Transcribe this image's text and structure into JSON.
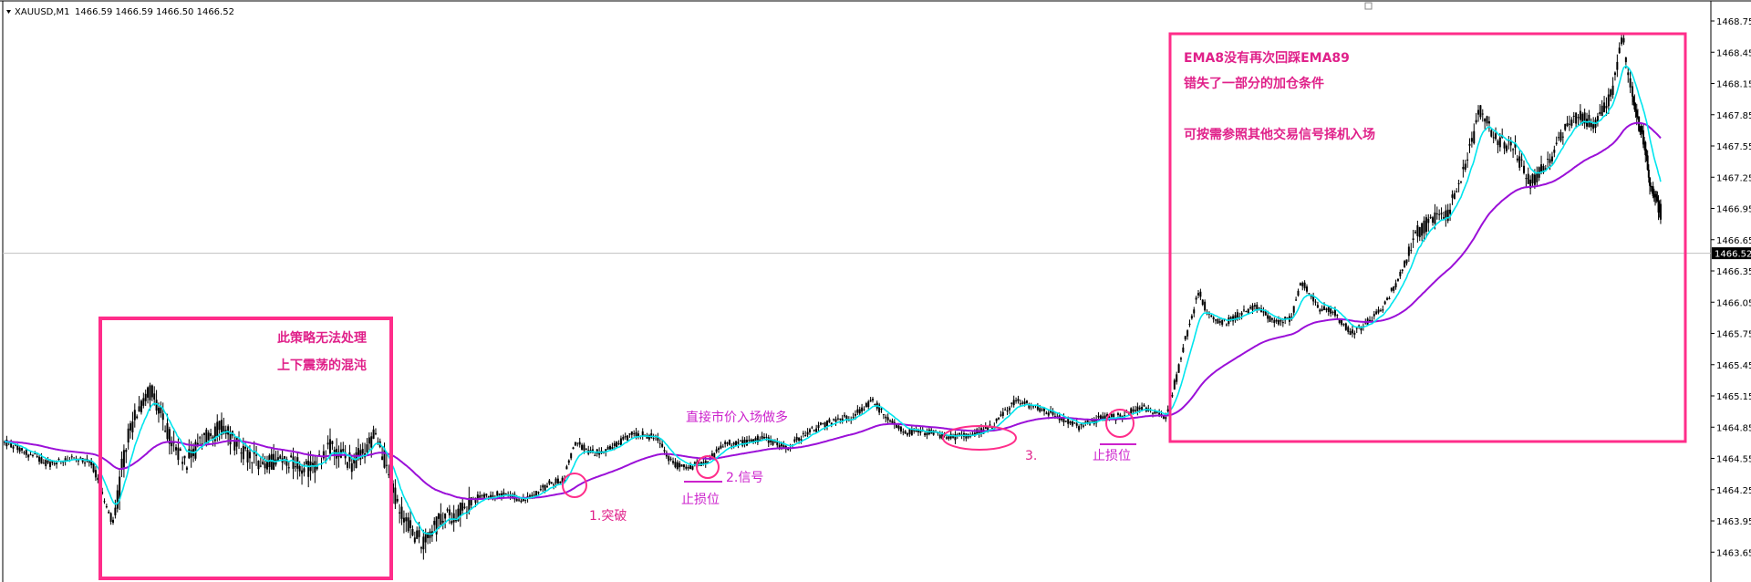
{
  "header": {
    "symbol_timeframe": "XAUUSD,M1",
    "ohlc": "1466.59 1466.59 1466.50 1466.52"
  },
  "colors": {
    "candle": "#000000",
    "ema_fast": "#00e5ee",
    "ema_slow": "#9b10d8",
    "annotation": "#ff2d8a",
    "annotation_text_pink": "#e0218a",
    "annotation_text_magenta": "#cc22cc",
    "price_line": "#c0c0c0",
    "price_label_bg": "#000000",
    "price_label_text": "#ffffff"
  },
  "current_price_label": "1466.52",
  "annotations": {
    "box1_line1": "此策略无法处理",
    "box1_line2": "上下震荡的混沌",
    "entry_text": "直接市价入场做多",
    "breakout": "1.突破",
    "signal": "2.信号",
    "stop1": "止损位",
    "three": "3.",
    "stop2": "止损位",
    "box2_line1": "EMA8没有再次回踩EMA89",
    "box2_line2": "错失了一部分的加仓条件",
    "box2_line3": "可按需参照其他交易信号择机入场"
  },
  "chart_data": {
    "type": "candlestick",
    "title": "XAUUSD,M1",
    "ylim": [
      1463.62,
      1468.82
    ],
    "y_ticks": [
      "1468.75",
      "1468.45",
      "1468.15",
      "1467.85",
      "1467.55",
      "1467.25",
      "1466.95",
      "1466.65",
      "1466.35",
      "1466.05",
      "1465.75",
      "1465.45",
      "1465.15",
      "1464.85",
      "1464.55",
      "1464.25",
      "1463.95",
      "1463.65"
    ],
    "series": [
      {
        "name": "EMA8"
      },
      {
        "name": "EMA89"
      }
    ],
    "price_path_anchors": [
      [
        0,
        1464.7
      ],
      [
        20,
        1464.6
      ],
      [
        40,
        1464.5
      ],
      [
        60,
        1464.55
      ],
      [
        80,
        1464.5
      ],
      [
        90,
        1464.2
      ],
      [
        100,
        1463.9
      ],
      [
        110,
        1464.6
      ],
      [
        120,
        1465.0
      ],
      [
        135,
        1465.2
      ],
      [
        150,
        1464.8
      ],
      [
        165,
        1464.5
      ],
      [
        180,
        1464.7
      ],
      [
        200,
        1464.85
      ],
      [
        220,
        1464.6
      ],
      [
        240,
        1464.5
      ],
      [
        260,
        1464.55
      ],
      [
        280,
        1464.45
      ],
      [
        300,
        1464.65
      ],
      [
        320,
        1464.5
      ],
      [
        340,
        1464.75
      ],
      [
        350,
        1464.55
      ],
      [
        360,
        1464.15
      ],
      [
        375,
        1463.85
      ],
      [
        385,
        1463.75
      ],
      [
        400,
        1463.95
      ],
      [
        420,
        1464.05
      ],
      [
        440,
        1464.2
      ],
      [
        460,
        1464.2
      ],
      [
        480,
        1464.15
      ],
      [
        500,
        1464.3
      ],
      [
        515,
        1464.35
      ],
      [
        525,
        1464.7
      ],
      [
        540,
        1464.6
      ],
      [
        560,
        1464.65
      ],
      [
        580,
        1464.8
      ],
      [
        600,
        1464.75
      ],
      [
        615,
        1464.5
      ],
      [
        630,
        1464.45
      ],
      [
        650,
        1464.55
      ],
      [
        665,
        1464.7
      ],
      [
        680,
        1464.7
      ],
      [
        700,
        1464.75
      ],
      [
        720,
        1464.65
      ],
      [
        740,
        1464.8
      ],
      [
        760,
        1464.9
      ],
      [
        780,
        1464.95
      ],
      [
        800,
        1465.1
      ],
      [
        815,
        1464.9
      ],
      [
        830,
        1464.8
      ],
      [
        850,
        1464.8
      ],
      [
        870,
        1464.75
      ],
      [
        890,
        1464.78
      ],
      [
        910,
        1464.85
      ],
      [
        930,
        1465.1
      ],
      [
        950,
        1465.05
      ],
      [
        970,
        1464.95
      ],
      [
        990,
        1464.85
      ],
      [
        1000,
        1464.9
      ],
      [
        1015,
        1464.95
      ],
      [
        1030,
        1464.95
      ],
      [
        1045,
        1465.05
      ],
      [
        1060,
        1465.0
      ],
      [
        1070,
        1464.95
      ],
      [
        1080,
        1465.35
      ],
      [
        1090,
        1465.8
      ],
      [
        1100,
        1466.15
      ],
      [
        1110,
        1465.9
      ],
      [
        1125,
        1465.85
      ],
      [
        1140,
        1465.95
      ],
      [
        1155,
        1466.0
      ],
      [
        1170,
        1465.85
      ],
      [
        1185,
        1465.9
      ],
      [
        1195,
        1466.25
      ],
      [
        1210,
        1466.0
      ],
      [
        1225,
        1465.95
      ],
      [
        1240,
        1465.75
      ],
      [
        1255,
        1465.85
      ],
      [
        1270,
        1466.0
      ],
      [
        1285,
        1466.3
      ],
      [
        1300,
        1466.7
      ],
      [
        1315,
        1466.85
      ],
      [
        1330,
        1466.9
      ],
      [
        1345,
        1467.35
      ],
      [
        1360,
        1467.9
      ],
      [
        1375,
        1467.6
      ],
      [
        1390,
        1467.55
      ],
      [
        1405,
        1467.2
      ],
      [
        1420,
        1467.35
      ],
      [
        1435,
        1467.7
      ],
      [
        1450,
        1467.85
      ],
      [
        1465,
        1467.75
      ],
      [
        1480,
        1468.05
      ],
      [
        1490,
        1468.6
      ],
      [
        1500,
        1468.0
      ],
      [
        1510,
        1467.6
      ],
      [
        1518,
        1467.1
      ],
      [
        1526,
        1466.9
      ]
    ]
  }
}
